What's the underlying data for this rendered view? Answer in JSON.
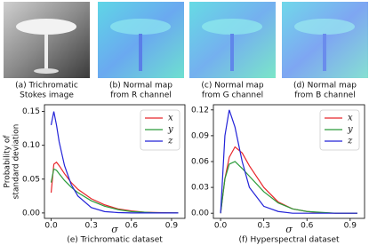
{
  "images": [
    {
      "caption": [
        "(a) Trichromatic",
        "Stokes image"
      ]
    },
    {
      "caption": [
        "(b) Normal map",
        "from R channel"
      ]
    },
    {
      "caption": [
        "(c) Normal map",
        "from G channel"
      ]
    },
    {
      "caption": [
        "(d) Normal map",
        "from B channel"
      ]
    }
  ],
  "chart_data": [
    {
      "type": "line",
      "caption": "(e) Trichromatic dataset",
      "xlabel": "σ",
      "ylabel": [
        "Probability of",
        "standard deviation"
      ],
      "x": [
        0,
        0.02,
        0.04,
        0.06,
        0.1,
        0.15,
        0.2,
        0.3,
        0.4,
        0.5,
        0.6,
        0.7,
        0.8,
        0.95
      ],
      "series": [
        {
          "name": "x",
          "color": "#e8262b",
          "values": [
            0.03,
            0.072,
            0.075,
            0.07,
            0.058,
            0.045,
            0.035,
            0.021,
            0.012,
            0.006,
            0.003,
            0.001,
            0.0005,
            0
          ]
        },
        {
          "name": "y",
          "color": "#2a9b3a",
          "values": [
            0.045,
            0.065,
            0.063,
            0.058,
            0.048,
            0.038,
            0.03,
            0.018,
            0.01,
            0.005,
            0.002,
            0.001,
            0,
            0
          ]
        },
        {
          "name": "z",
          "color": "#2323d8",
          "values": [
            0.13,
            0.15,
            0.13,
            0.105,
            0.07,
            0.042,
            0.025,
            0.008,
            0.002,
            0.0005,
            0,
            0,
            0,
            0
          ]
        }
      ],
      "xlim": [
        -0.05,
        1.0
      ],
      "xticks": [
        {
          "value": 0,
          "label": "0.0"
        },
        0.3,
        0.6,
        0.9
      ],
      "ylim": [
        -0.008,
        0.16
      ],
      "yticks": [
        {
          "value": 0,
          "label": "0.00"
        },
        {
          "value": 0.05,
          "label": "0.05"
        },
        {
          "value": 0.1,
          "label": "0.10"
        },
        {
          "value": 0.15,
          "label": "0.15"
        }
      ],
      "legend": "upper right"
    },
    {
      "type": "line",
      "caption": "(f) Hyperspectral dataset",
      "xlabel": "σ",
      "x": [
        0,
        0.03,
        0.06,
        0.1,
        0.15,
        0.2,
        0.3,
        0.4,
        0.5,
        0.6,
        0.7,
        0.8,
        0.95
      ],
      "series": [
        {
          "name": "x",
          "color": "#e8262b",
          "values": [
            0,
            0.04,
            0.065,
            0.077,
            0.07,
            0.055,
            0.03,
            0.013,
            0.005,
            0.002,
            0.0005,
            0,
            0
          ]
        },
        {
          "name": "y",
          "color": "#2a9b3a",
          "values": [
            0,
            0.04,
            0.057,
            0.06,
            0.052,
            0.043,
            0.025,
            0.012,
            0.005,
            0.002,
            0.001,
            0,
            0
          ]
        },
        {
          "name": "z",
          "color": "#2323d8",
          "values": [
            0,
            0.09,
            0.12,
            0.1,
            0.06,
            0.03,
            0.008,
            0.002,
            0,
            0,
            0,
            0,
            0
          ]
        }
      ],
      "xlim": [
        -0.05,
        1.0
      ],
      "xticks": [
        {
          "value": 0,
          "label": "0.0"
        },
        0.3,
        0.6,
        0.9
      ],
      "ylim": [
        -0.006,
        0.126
      ],
      "yticks": [
        {
          "value": 0,
          "label": "0.00"
        },
        {
          "value": 0.03,
          "label": "0.03"
        },
        {
          "value": 0.06,
          "label": "0.06"
        },
        {
          "value": 0.09,
          "label": "0.09"
        },
        {
          "value": 0.12,
          "label": "0.12"
        }
      ],
      "legend": "upper right"
    }
  ]
}
